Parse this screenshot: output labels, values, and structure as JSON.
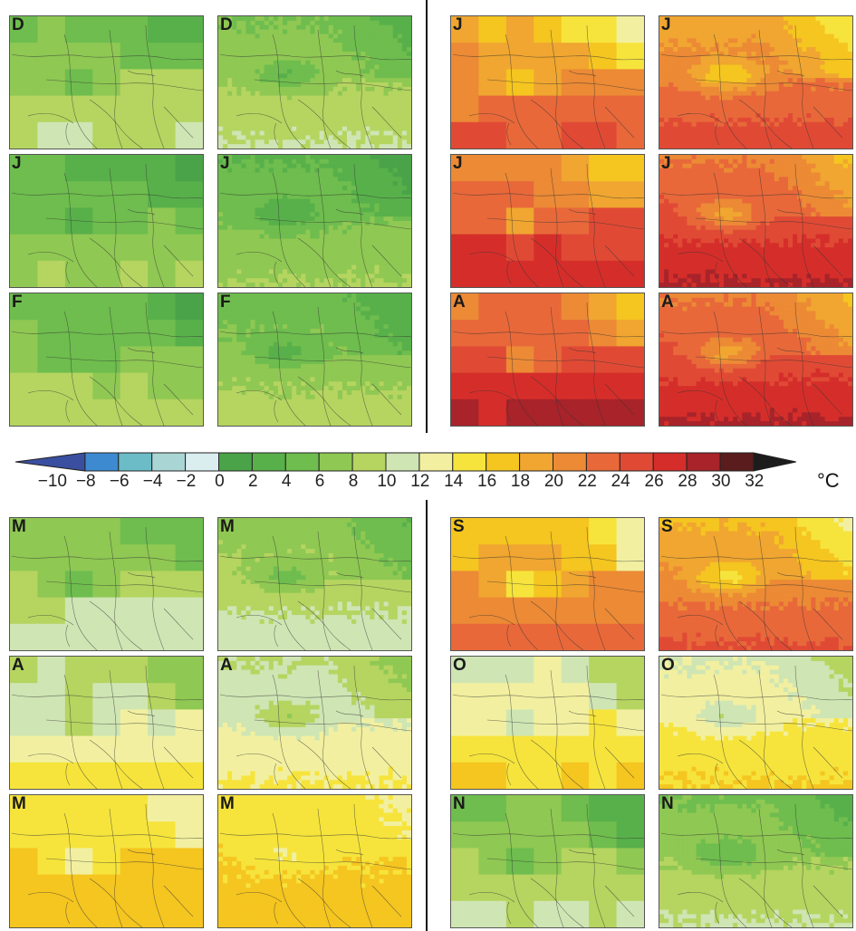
{
  "colorbar": {
    "tick_labels": [
      "-10",
      "-8",
      "-6",
      "-4",
      "-2",
      "0",
      "2",
      "4",
      "6",
      "8",
      "10",
      "12",
      "14",
      "16",
      "18",
      "20",
      "22",
      "24",
      "26",
      "28",
      "30",
      "32"
    ],
    "unit": "°C",
    "colors": [
      "#3a4fa0",
      "#3e8ad0",
      "#6bbcc6",
      "#a9d6d4",
      "#daeef0",
      "#4aa348",
      "#58b04a",
      "#6ebd4e",
      "#8fc853",
      "#b5d560",
      "#cfe5b4",
      "#f2f0a0",
      "#f6e43c",
      "#f5c520",
      "#f0a630",
      "#ec8a35",
      "#e8683a",
      "#e04a35",
      "#d52e2a",
      "#a8232a",
      "#5a1c1c",
      "#1c1c1c"
    ]
  },
  "panels": [
    {
      "label": "D",
      "res": "coarse",
      "base": 8,
      "grad": 2
    },
    {
      "label": "D",
      "res": "fine",
      "base": 8,
      "grad": 2
    },
    {
      "label": "J",
      "res": "coarse",
      "base": 21,
      "grad": 3
    },
    {
      "label": "J",
      "res": "fine",
      "base": 22,
      "grad": 3
    },
    {
      "label": "J",
      "res": "coarse",
      "base": 6,
      "grad": 2
    },
    {
      "label": "J",
      "res": "fine",
      "base": 6,
      "grad": 2
    },
    {
      "label": "J",
      "res": "coarse",
      "base": 24,
      "grad": 3
    },
    {
      "label": "J",
      "res": "fine",
      "base": 25,
      "grad": 3
    },
    {
      "label": "F",
      "res": "coarse",
      "base": 7,
      "grad": 2
    },
    {
      "label": "F",
      "res": "fine",
      "base": 7,
      "grad": 2
    },
    {
      "label": "A",
      "res": "coarse",
      "base": 25,
      "grad": 3
    },
    {
      "label": "A",
      "res": "fine",
      "base": 25,
      "grad": 3
    },
    {
      "label": "M",
      "res": "coarse",
      "base": 9,
      "grad": 2
    },
    {
      "label": "M",
      "res": "fine",
      "base": 9,
      "grad": 2
    },
    {
      "label": "S",
      "res": "coarse",
      "base": 20,
      "grad": 3
    },
    {
      "label": "S",
      "res": "fine",
      "base": 21,
      "grad": 3
    },
    {
      "label": "A",
      "res": "coarse",
      "base": 12,
      "grad": 2
    },
    {
      "label": "A",
      "res": "fine",
      "base": 12,
      "grad": 2
    },
    {
      "label": "O",
      "res": "coarse",
      "base": 14,
      "grad": 2
    },
    {
      "label": "O",
      "res": "fine",
      "base": 14,
      "grad": 2
    },
    {
      "label": "M",
      "res": "coarse",
      "base": 16,
      "grad": 1
    },
    {
      "label": "M",
      "res": "fine",
      "base": 16,
      "grad": 1
    },
    {
      "label": "N",
      "res": "coarse",
      "base": 8,
      "grad": 2
    },
    {
      "label": "N",
      "res": "fine",
      "base": 8,
      "grad": 2
    }
  ]
}
